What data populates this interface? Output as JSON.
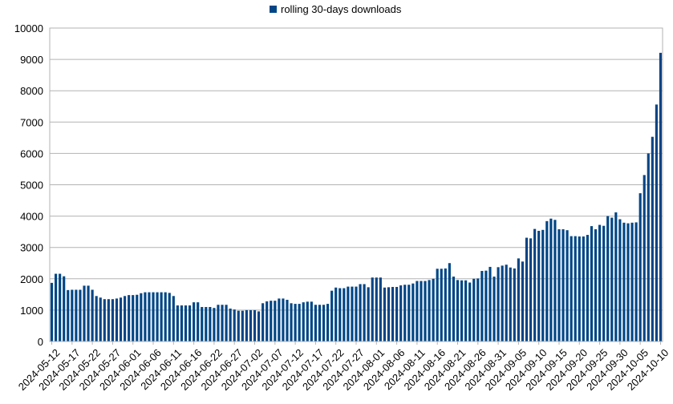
{
  "chart_data": {
    "type": "bar",
    "legend": {
      "label": "rolling 30-days downloads",
      "position": "top-center"
    },
    "color": "#004586",
    "ylim": [
      0,
      10000
    ],
    "y_ticks": [
      0,
      1000,
      2000,
      3000,
      4000,
      5000,
      6000,
      7000,
      8000,
      9000,
      10000
    ],
    "grid": "horizontal",
    "x_tick_labels": [
      "2024-05-12",
      "2024-05-17",
      "2024-05-22",
      "2024-05-27",
      "2024-06-01",
      "2024-06-06",
      "2024-06-11",
      "2024-06-16",
      "2024-06-22",
      "2024-06-27",
      "2024-07-02",
      "2024-07-07",
      "2024-07-12",
      "2024-07-17",
      "2024-07-22",
      "2024-07-27",
      "2024-08-01",
      "2024-08-06",
      "2024-08-11",
      "2024-08-16",
      "2024-08-21",
      "2024-08-26",
      "2024-08-31",
      "2024-09-05",
      "2024-09-10",
      "2024-09-15",
      "2024-09-20",
      "2024-09-25",
      "2024-09-30",
      "2024-10-05",
      "2024-10-10"
    ],
    "x_tick_every": 5,
    "values": [
      1870,
      2160,
      2160,
      2080,
      1640,
      1650,
      1650,
      1650,
      1780,
      1780,
      1650,
      1450,
      1400,
      1350,
      1350,
      1350,
      1370,
      1400,
      1450,
      1480,
      1480,
      1490,
      1540,
      1570,
      1570,
      1570,
      1570,
      1570,
      1570,
      1550,
      1450,
      1150,
      1150,
      1150,
      1150,
      1250,
      1250,
      1100,
      1100,
      1100,
      1070,
      1170,
      1170,
      1170,
      1050,
      1020,
      980,
      980,
      1000,
      1000,
      1000,
      960,
      1220,
      1280,
      1300,
      1300,
      1370,
      1370,
      1330,
      1220,
      1200,
      1200,
      1250,
      1270,
      1270,
      1170,
      1170,
      1170,
      1200,
      1620,
      1720,
      1700,
      1700,
      1750,
      1750,
      1750,
      1830,
      1830,
      1730,
      2040,
      2040,
      2040,
      1720,
      1730,
      1740,
      1740,
      1790,
      1810,
      1810,
      1850,
      1930,
      1930,
      1930,
      1960,
      2000,
      2320,
      2320,
      2330,
      2500,
      2070,
      1960,
      1950,
      1950,
      1880,
      2000,
      2010,
      2250,
      2260,
      2380,
      2070,
      2370,
      2420,
      2450,
      2360,
      2330,
      2650,
      2550,
      3310,
      3290,
      3590,
      3530,
      3560,
      3840,
      3920,
      3880,
      3580,
      3580,
      3550,
      3360,
      3360,
      3350,
      3350,
      3400,
      3680,
      3580,
      3720,
      3690,
      4000,
      3950,
      4120,
      3900,
      3790,
      3770,
      3790,
      3800,
      4730,
      5310,
      6000,
      6530,
      7560,
      9210
    ]
  }
}
